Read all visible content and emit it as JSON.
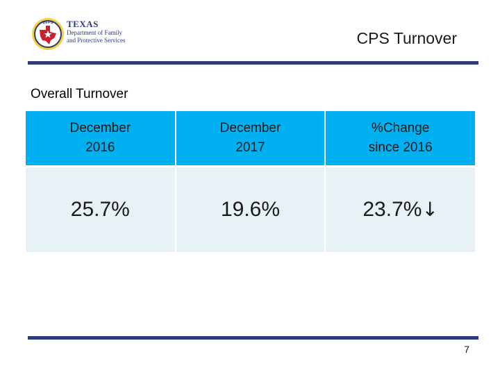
{
  "header": {
    "logo": {
      "seal_text": "DFPS",
      "title": "TEXAS",
      "subtitle_line1": "Department of Family",
      "subtitle_line2": "and Protective Services"
    },
    "title": "CPS Turnover"
  },
  "section_label": "Overall Turnover",
  "table": {
    "headers": [
      {
        "line1": "December",
        "line2": "2016"
      },
      {
        "line1": "December",
        "line2": "2017"
      },
      {
        "line1": "%Change",
        "line2": "since 2016"
      }
    ],
    "row": {
      "dec_2016": "25.7%",
      "dec_2017": "19.6%",
      "change": "23.7%",
      "change_direction": "down",
      "change_arrow": "↓"
    }
  },
  "page_number": "7",
  "colors": {
    "header_fill": "#00b0f0",
    "body_fill": "#e7f1f6",
    "rule": "#2e3b78",
    "logo_navy": "#2b3a7a",
    "logo_red": "#c8202f"
  }
}
